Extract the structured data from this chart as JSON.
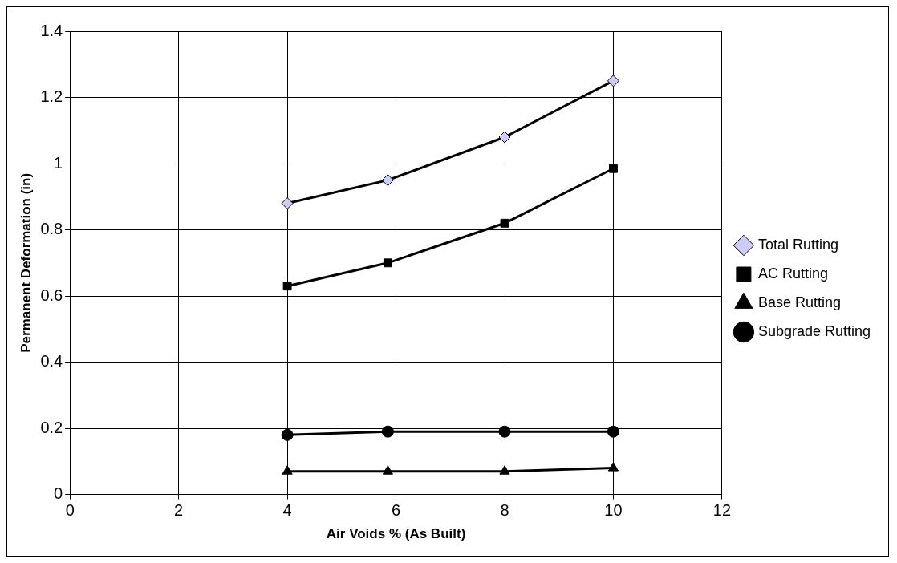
{
  "chart_data": {
    "type": "line",
    "xlabel": "Air Voids % (As Built)",
    "ylabel": "Permanent Deformation (in)",
    "xlim": [
      0,
      12
    ],
    "xticks": [
      0,
      2,
      4,
      6,
      8,
      10,
      12
    ],
    "ylim": [
      0,
      1.4
    ],
    "yticks": [
      0,
      0.2,
      0.4,
      0.6,
      0.8,
      1,
      1.2,
      1.4
    ],
    "grid": true,
    "legend": "right",
    "line_style": "solid",
    "series": [
      {
        "name": "Total Rutting",
        "color": "#000000",
        "marker": "diamond",
        "colors": [
          "#ccccff",
          "#ccccff",
          "#ccccff",
          "#ccccff"
        ],
        "x": [
          4,
          5.85,
          8,
          10
        ],
        "values": [
          0.88,
          0.95,
          1.08,
          1.25
        ]
      },
      {
        "name": "AC Rutting",
        "color": "#000000",
        "marker": "square",
        "x": [
          4,
          5.85,
          8,
          10
        ],
        "values": [
          0.63,
          0.7,
          0.82,
          0.985
        ]
      },
      {
        "name": "Base Rutting",
        "color": "#000000",
        "marker": "triangle",
        "x": [
          4,
          5.85,
          8,
          10
        ],
        "values": [
          0.07,
          0.07,
          0.07,
          0.08
        ]
      },
      {
        "name": "Subgrade Rutting",
        "color": "#000000",
        "marker": "circle",
        "x": [
          4,
          5.85,
          8,
          10
        ],
        "values": [
          0.18,
          0.19,
          0.19,
          0.19
        ]
      }
    ]
  }
}
